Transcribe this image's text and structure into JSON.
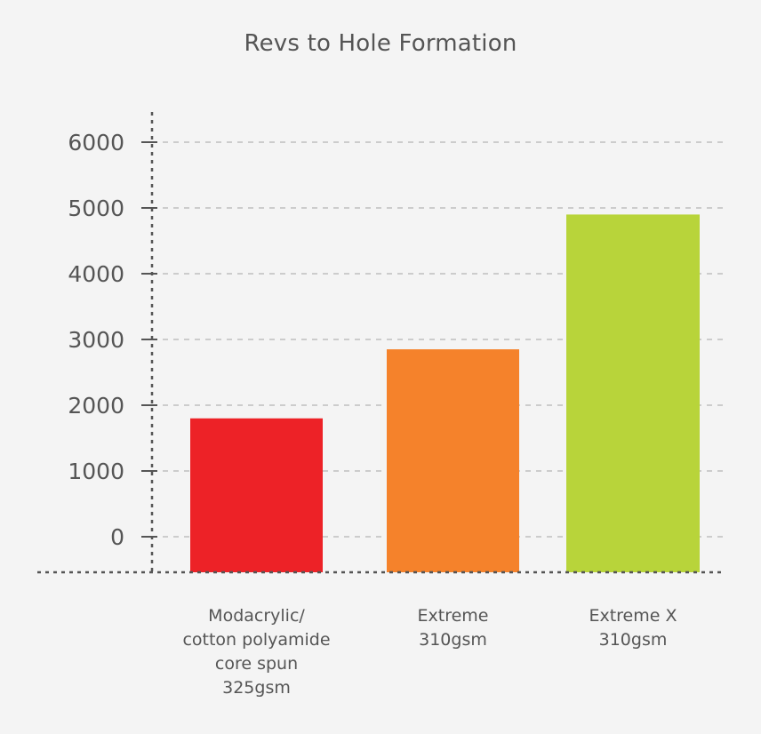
{
  "chart_data": {
    "type": "bar",
    "title": "Revs to Hole Formation",
    "xlabel": "",
    "ylabel": "",
    "categories": [
      [
        "Modacrylic/",
        "cotton polyamide",
        "core spun",
        "325gsm"
      ],
      [
        "Extreme",
        "310gsm"
      ],
      [
        "Extreme X",
        "310gsm"
      ]
    ],
    "values": [
      1800,
      2850,
      4900
    ],
    "colors": [
      "#ed2227",
      "#f5822b",
      "#b8d43a"
    ],
    "yticks": [
      "0",
      "1000",
      "2000",
      "3000",
      "4000",
      "5000",
      "6000"
    ],
    "ylim": [
      0,
      6000
    ],
    "grid": true,
    "legend": "none"
  }
}
